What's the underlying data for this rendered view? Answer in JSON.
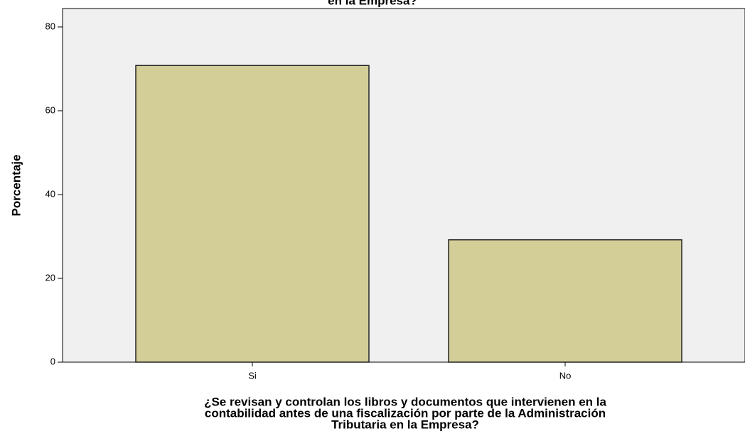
{
  "chart_data": {
    "type": "bar",
    "title": "en la Empresa?",
    "categories": [
      "Si",
      "No"
    ],
    "values": [
      70.8,
      29.2
    ],
    "color": "#d3ce98",
    "ylabel": "Porcentaje",
    "xlabel": [
      "¿Se revisan y controlan los libros y documentos que intervienen en la",
      "contabilidad antes de una fiscalización por parte de la Administración",
      "Tributaria en la Empresa?"
    ],
    "ylim": [
      0,
      84.4
    ],
    "yticks": [
      0,
      20,
      40,
      60,
      80
    ],
    "grid": false
  }
}
